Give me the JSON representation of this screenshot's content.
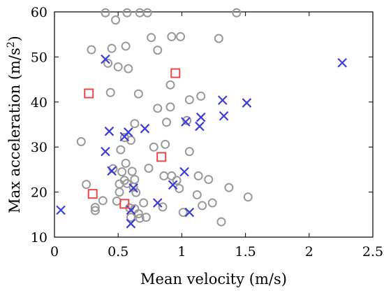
{
  "chart_data": {
    "type": "scatter",
    "title": "",
    "xlabel": "Mean velocity (m/s)",
    "ylabel": "Max acceleration (m/s",
    "ylabel_superscript": "2",
    "ylabel_suffix": ")",
    "xlim": [
      0,
      2.5
    ],
    "ylim": [
      10,
      60
    ],
    "x_ticks": [
      0,
      0.5,
      1,
      1.5,
      2,
      2.5
    ],
    "x_tick_labels": [
      "0",
      "0.5",
      "1",
      "1.5",
      "2",
      "2.5"
    ],
    "y_ticks": [
      10,
      20,
      30,
      40,
      50,
      60
    ],
    "y_tick_labels": [
      "10",
      "20",
      "30",
      "40",
      "50",
      "60"
    ],
    "grid": false,
    "legend": "none",
    "series": [
      {
        "marker": "circle",
        "color": "#999999",
        "points": [
          [
            0.4,
            59.8
          ],
          [
            0.48,
            58.2
          ],
          [
            0.57,
            59.8
          ],
          [
            0.67,
            59.8
          ],
          [
            0.73,
            59.8
          ],
          [
            1.43,
            59.8
          ],
          [
            0.76,
            54.3
          ],
          [
            0.92,
            54.5
          ],
          [
            0.99,
            54.5
          ],
          [
            1.29,
            54.1
          ],
          [
            0.56,
            52.4
          ],
          [
            0.45,
            51.9
          ],
          [
            0.29,
            51.6
          ],
          [
            0.81,
            51.5
          ],
          [
            0.42,
            48.6
          ],
          [
            0.5,
            47.8
          ],
          [
            0.58,
            47.4
          ],
          [
            0.91,
            43.8
          ],
          [
            0.44,
            42.1
          ],
          [
            0.66,
            41.8
          ],
          [
            1.06,
            40.5
          ],
          [
            1.15,
            41.3
          ],
          [
            0.81,
            38.6
          ],
          [
            0.91,
            38.9
          ],
          [
            0.63,
            35.2
          ],
          [
            0.88,
            35.5
          ],
          [
            1.04,
            35.9
          ],
          [
            0.55,
            32.1
          ],
          [
            0.6,
            31.5
          ],
          [
            0.21,
            31.2
          ],
          [
            0.87,
            30.6
          ],
          [
            0.78,
            30.0
          ],
          [
            0.52,
            29.4
          ],
          [
            1.06,
            29.0
          ],
          [
            0.56,
            26.4
          ],
          [
            0.74,
            25.3
          ],
          [
            0.46,
            25.2
          ],
          [
            0.53,
            24.5
          ],
          [
            0.61,
            24.6
          ],
          [
            0.86,
            23.6
          ],
          [
            0.92,
            23.6
          ],
          [
            1.13,
            23.6
          ],
          [
            0.55,
            22.6
          ],
          [
            0.63,
            22.8
          ],
          [
            0.96,
            22.6
          ],
          [
            1.21,
            22.8
          ],
          [
            0.51,
            21.8
          ],
          [
            0.57,
            21.9
          ],
          [
            0.25,
            21.7
          ],
          [
            0.62,
            21.1
          ],
          [
            0.98,
            20.8
          ],
          [
            1.37,
            21.0
          ],
          [
            0.51,
            20.0
          ],
          [
            0.64,
            19.9
          ],
          [
            1.12,
            19.4
          ],
          [
            1.52,
            18.9
          ],
          [
            0.38,
            18.1
          ],
          [
            0.49,
            18.0
          ],
          [
            0.7,
            17.6
          ],
          [
            1.16,
            17.0
          ],
          [
            1.24,
            17.6
          ],
          [
            0.32,
            16.6
          ],
          [
            0.59,
            16.5
          ],
          [
            0.63,
            16.3
          ],
          [
            0.85,
            16.7
          ],
          [
            1.01,
            15.5
          ],
          [
            0.32,
            15.9
          ],
          [
            0.66,
            15.2
          ],
          [
            0.6,
            14.4
          ],
          [
            0.67,
            14.2
          ],
          [
            0.72,
            14.4
          ],
          [
            1.31,
            13.4
          ]
        ]
      },
      {
        "marker": "x",
        "color": "#3d3dd6",
        "points": [
          [
            0.4,
            49.5
          ],
          [
            2.26,
            48.7
          ],
          [
            1.32,
            40.4
          ],
          [
            1.51,
            39.8
          ],
          [
            1.33,
            36.9
          ],
          [
            1.15,
            36.6
          ],
          [
            1.03,
            35.6
          ],
          [
            1.14,
            34.6
          ],
          [
            0.71,
            34.1
          ],
          [
            0.43,
            33.5
          ],
          [
            0.58,
            33.3
          ],
          [
            0.55,
            32.3
          ],
          [
            0.4,
            29.0
          ],
          [
            0.45,
            24.7
          ],
          [
            1.02,
            24.5
          ],
          [
            0.93,
            21.6
          ],
          [
            0.62,
            20.9
          ],
          [
            0.81,
            17.6
          ],
          [
            1.06,
            15.5
          ],
          [
            0.05,
            16.0
          ],
          [
            0.6,
            16.0
          ],
          [
            0.6,
            13.0
          ]
        ]
      },
      {
        "marker": "square",
        "color": "#e8474d",
        "points": [
          [
            0.95,
            46.4
          ],
          [
            0.27,
            41.9
          ],
          [
            0.84,
            27.8
          ],
          [
            0.3,
            19.6
          ],
          [
            0.55,
            17.4
          ]
        ]
      }
    ]
  }
}
